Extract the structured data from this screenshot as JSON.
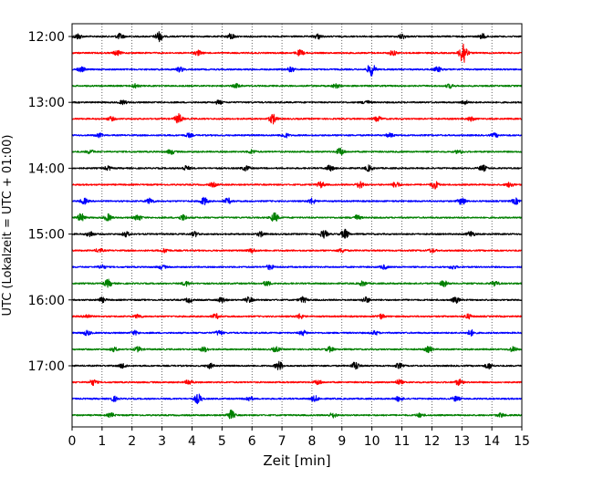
{
  "chart_data": {
    "type": "line",
    "title": "",
    "xlabel": "Zeit  [min]",
    "ylabel": "UTC (Lokalzeit = UTC + 01:00)",
    "xlim": [
      0,
      15
    ],
    "x_ticks": [
      0,
      1,
      2,
      3,
      4,
      5,
      6,
      7,
      8,
      9,
      10,
      11,
      12,
      13,
      14,
      15
    ],
    "x_tick_labels": [
      "0",
      "1",
      "2",
      "3",
      "4",
      "5",
      "6",
      "7",
      "8",
      "9",
      "10",
      "11",
      "12",
      "13",
      "14",
      "15"
    ],
    "grid": "vertical dotted lines at each minute",
    "y_tick_labels": [
      "12:00",
      "13:00",
      "14:00",
      "15:00",
      "16:00",
      "17:00"
    ],
    "y_tick_rows": [
      0,
      4,
      8,
      12,
      16,
      20
    ],
    "colors": [
      "#000000",
      "#ff0000",
      "#0000ff",
      "#008000"
    ],
    "series": [
      {
        "start": "12:00",
        "color": "#000000",
        "events": [
          {
            "t": 0.2,
            "amp": 3
          },
          {
            "t": 1.6,
            "amp": 3
          },
          {
            "t": 2.9,
            "amp": 5
          },
          {
            "t": 5.3,
            "amp": 3
          },
          {
            "t": 8.2,
            "amp": 2.5
          },
          {
            "t": 11.0,
            "amp": 2.5
          },
          {
            "t": 13.7,
            "amp": 2.5
          }
        ]
      },
      {
        "start": "12:15",
        "color": "#ff0000",
        "events": [
          {
            "t": 1.5,
            "amp": 2.5
          },
          {
            "t": 4.2,
            "amp": 2.5
          },
          {
            "t": 7.6,
            "amp": 3
          },
          {
            "t": 10.7,
            "amp": 2.5
          },
          {
            "t": 13.05,
            "amp": 13
          }
        ]
      },
      {
        "start": "12:30",
        "color": "#0000ff",
        "events": [
          {
            "t": 0.3,
            "amp": 2.5
          },
          {
            "t": 3.6,
            "amp": 2.5
          },
          {
            "t": 7.3,
            "amp": 2.5
          },
          {
            "t": 9.98,
            "amp": 7
          },
          {
            "t": 12.2,
            "amp": 2.5
          }
        ]
      },
      {
        "start": "12:45",
        "color": "#008000",
        "events": [
          {
            "t": 2.1,
            "amp": 2
          },
          {
            "t": 5.5,
            "amp": 2
          },
          {
            "t": 8.8,
            "amp": 2
          },
          {
            "t": 12.6,
            "amp": 2
          }
        ]
      },
      {
        "start": "13:00",
        "color": "#000000",
        "events": [
          {
            "t": 1.7,
            "amp": 2
          },
          {
            "t": 4.9,
            "amp": 2
          },
          {
            "t": 9.8,
            "amp": 2
          },
          {
            "t": 13.1,
            "amp": 2
          }
        ]
      },
      {
        "start": "13:15",
        "color": "#ff0000",
        "events": [
          {
            "t": 1.3,
            "amp": 2
          },
          {
            "t": 3.55,
            "amp": 5
          },
          {
            "t": 6.7,
            "amp": 5
          },
          {
            "t": 10.2,
            "amp": 2.5
          },
          {
            "t": 13.3,
            "amp": 2
          }
        ]
      },
      {
        "start": "13:30",
        "color": "#0000ff",
        "events": [
          {
            "t": 0.9,
            "amp": 2
          },
          {
            "t": 3.9,
            "amp": 2
          },
          {
            "t": 7.1,
            "amp": 2.5
          },
          {
            "t": 10.6,
            "amp": 2
          },
          {
            "t": 14.1,
            "amp": 2
          }
        ]
      },
      {
        "start": "13:45",
        "color": "#008000",
        "events": [
          {
            "t": 0.6,
            "amp": 2
          },
          {
            "t": 3.3,
            "amp": 2.5
          },
          {
            "t": 6.0,
            "amp": 2
          },
          {
            "t": 8.95,
            "amp": 4
          },
          {
            "t": 12.9,
            "amp": 2
          }
        ]
      },
      {
        "start": "14:00",
        "color": "#000000",
        "events": [
          {
            "t": 1.2,
            "amp": 2
          },
          {
            "t": 3.8,
            "amp": 2.5
          },
          {
            "t": 5.8,
            "amp": 2.5
          },
          {
            "t": 8.6,
            "amp": 3
          },
          {
            "t": 9.9,
            "amp": 3
          },
          {
            "t": 13.7,
            "amp": 3
          }
        ]
      },
      {
        "start": "14:15",
        "color": "#ff0000",
        "events": [
          {
            "t": 4.7,
            "amp": 2
          },
          {
            "t": 8.3,
            "amp": 3
          },
          {
            "t": 9.6,
            "amp": 3.5
          },
          {
            "t": 10.8,
            "amp": 3
          },
          {
            "t": 12.1,
            "amp": 4
          },
          {
            "t": 14.6,
            "amp": 2.5
          }
        ]
      },
      {
        "start": "14:30",
        "color": "#0000ff",
        "events": [
          {
            "t": 0.4,
            "amp": 3
          },
          {
            "t": 2.6,
            "amp": 3
          },
          {
            "t": 4.4,
            "amp": 4
          },
          {
            "t": 5.2,
            "amp": 3
          },
          {
            "t": 8.0,
            "amp": 3
          },
          {
            "t": 13.0,
            "amp": 4
          },
          {
            "t": 14.8,
            "amp": 3
          }
        ]
      },
      {
        "start": "14:45",
        "color": "#008000",
        "events": [
          {
            "t": 0.3,
            "amp": 4
          },
          {
            "t": 1.2,
            "amp": 3.5
          },
          {
            "t": 2.2,
            "amp": 3
          },
          {
            "t": 3.7,
            "amp": 3
          },
          {
            "t": 6.75,
            "amp": 5
          },
          {
            "t": 9.5,
            "amp": 2.5
          }
        ]
      },
      {
        "start": "15:00",
        "color": "#000000",
        "events": [
          {
            "t": 0.6,
            "amp": 3
          },
          {
            "t": 1.8,
            "amp": 2.5
          },
          {
            "t": 4.1,
            "amp": 2.5
          },
          {
            "t": 6.3,
            "amp": 2.5
          },
          {
            "t": 8.4,
            "amp": 4
          },
          {
            "t": 9.1,
            "amp": 5
          },
          {
            "t": 13.3,
            "amp": 3
          }
        ]
      },
      {
        "start": "15:15",
        "color": "#ff0000",
        "events": [
          {
            "t": 0.9,
            "amp": 2
          },
          {
            "t": 3.1,
            "amp": 2
          },
          {
            "t": 6.0,
            "amp": 2
          },
          {
            "t": 9.0,
            "amp": 2
          },
          {
            "t": 12.0,
            "amp": 2
          }
        ]
      },
      {
        "start": "15:30",
        "color": "#0000ff",
        "events": [
          {
            "t": 1.0,
            "amp": 2
          },
          {
            "t": 3.0,
            "amp": 2
          },
          {
            "t": 6.6,
            "amp": 2.5
          },
          {
            "t": 10.4,
            "amp": 2
          },
          {
            "t": 12.7,
            "amp": 2
          }
        ]
      },
      {
        "start": "15:45",
        "color": "#008000",
        "events": [
          {
            "t": 1.2,
            "amp": 4
          },
          {
            "t": 3.8,
            "amp": 2.5
          },
          {
            "t": 6.5,
            "amp": 2.5
          },
          {
            "t": 9.7,
            "amp": 2.5
          },
          {
            "t": 12.4,
            "amp": 3
          },
          {
            "t": 14.1,
            "amp": 2.5
          }
        ]
      },
      {
        "start": "16:00",
        "color": "#000000",
        "events": [
          {
            "t": 1.0,
            "amp": 2.5
          },
          {
            "t": 3.9,
            "amp": 2.5
          },
          {
            "t": 5.0,
            "amp": 3
          },
          {
            "t": 5.9,
            "amp": 3
          },
          {
            "t": 7.7,
            "amp": 3
          },
          {
            "t": 9.8,
            "amp": 3
          },
          {
            "t": 12.8,
            "amp": 3
          }
        ]
      },
      {
        "start": "16:15",
        "color": "#ff0000",
        "events": [
          {
            "t": 0.5,
            "amp": 2
          },
          {
            "t": 2.2,
            "amp": 2
          },
          {
            "t": 4.8,
            "amp": 2.5
          },
          {
            "t": 7.6,
            "amp": 2.5
          },
          {
            "t": 10.3,
            "amp": 2.5
          },
          {
            "t": 13.2,
            "amp": 2.5
          }
        ]
      },
      {
        "start": "16:30",
        "color": "#0000ff",
        "events": [
          {
            "t": 0.5,
            "amp": 2.5
          },
          {
            "t": 2.1,
            "amp": 2
          },
          {
            "t": 4.9,
            "amp": 2.5
          },
          {
            "t": 7.7,
            "amp": 2.5
          },
          {
            "t": 10.1,
            "amp": 2
          },
          {
            "t": 13.3,
            "amp": 3
          }
        ]
      },
      {
        "start": "16:45",
        "color": "#008000",
        "events": [
          {
            "t": 1.4,
            "amp": 2
          },
          {
            "t": 2.2,
            "amp": 2.5
          },
          {
            "t": 4.4,
            "amp": 2.5
          },
          {
            "t": 6.8,
            "amp": 2.5
          },
          {
            "t": 8.6,
            "amp": 2.5
          },
          {
            "t": 11.9,
            "amp": 3
          },
          {
            "t": 14.7,
            "amp": 2.5
          }
        ]
      },
      {
        "start": "17:00",
        "color": "#000000",
        "events": [
          {
            "t": 1.7,
            "amp": 2.5
          },
          {
            "t": 4.6,
            "amp": 2.5
          },
          {
            "t": 6.9,
            "amp": 4.5
          },
          {
            "t": 9.45,
            "amp": 4
          },
          {
            "t": 10.9,
            "amp": 2.5
          },
          {
            "t": 13.9,
            "amp": 3
          }
        ]
      },
      {
        "start": "17:15",
        "color": "#ff0000",
        "events": [
          {
            "t": 0.7,
            "amp": 3
          },
          {
            "t": 3.9,
            "amp": 2.5
          },
          {
            "t": 8.2,
            "amp": 2.5
          },
          {
            "t": 10.9,
            "amp": 2.5
          },
          {
            "t": 12.9,
            "amp": 3
          }
        ]
      },
      {
        "start": "17:30",
        "color": "#0000ff",
        "events": [
          {
            "t": 1.4,
            "amp": 2.5
          },
          {
            "t": 4.2,
            "amp": 5
          },
          {
            "t": 5.9,
            "amp": 2.5
          },
          {
            "t": 8.1,
            "amp": 3
          },
          {
            "t": 10.9,
            "amp": 2.5
          },
          {
            "t": 12.8,
            "amp": 2.5
          }
        ]
      },
      {
        "start": "17:45",
        "color": "#008000",
        "events": [
          {
            "t": 1.3,
            "amp": 2
          },
          {
            "t": 5.3,
            "amp": 5
          },
          {
            "t": 8.7,
            "amp": 2.5
          },
          {
            "t": 11.6,
            "amp": 2
          },
          {
            "t": 14.3,
            "amp": 2
          }
        ]
      }
    ]
  }
}
